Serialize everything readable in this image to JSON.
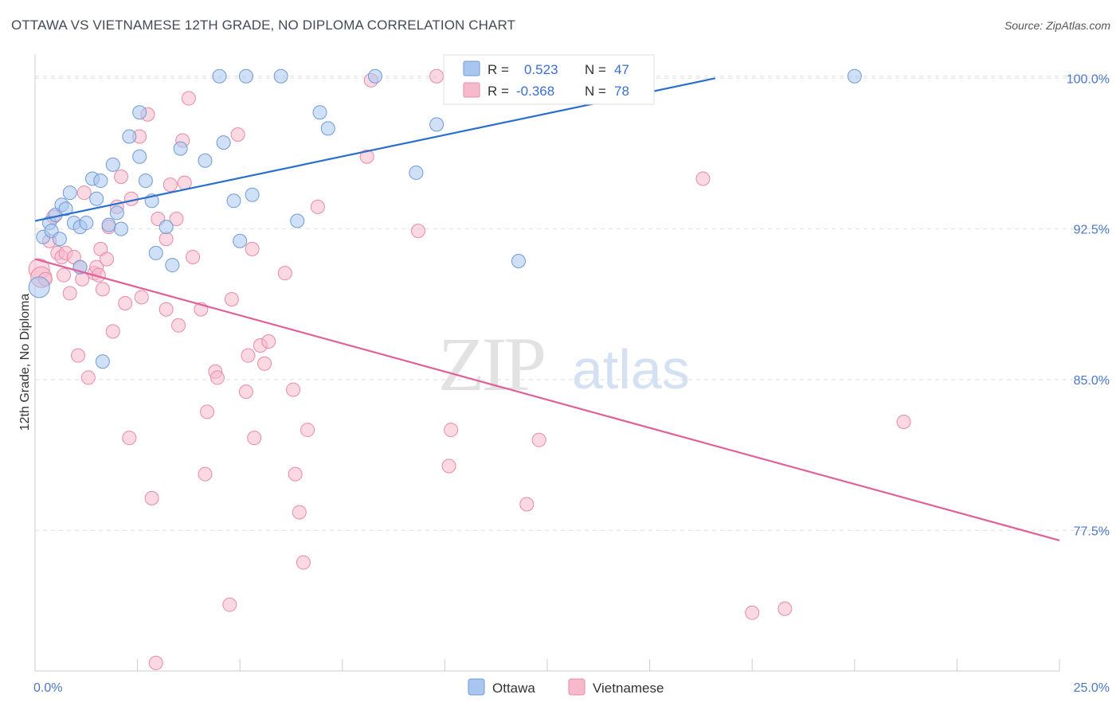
{
  "title": "OTTAWA VS VIETNAMESE 12TH GRADE, NO DIPLOMA CORRELATION CHART",
  "source": "Source: ZipAtlas.com",
  "watermark": {
    "zip": "ZIP",
    "atlas": "atlas"
  },
  "colors": {
    "ottawa_fill": "#a9c6f0",
    "ottawa_stroke": "#6f9ad8",
    "ottawa_line": "#2a6fcc",
    "viet_fill": "#f7b9cc",
    "viet_stroke": "#e88aa6",
    "viet_line": "#e0609a",
    "axis_text": "#4a78c4"
  },
  "legend_top": {
    "rows": [
      {
        "r_label": "R =",
        "r_value": "0.523",
        "n_label": "N =",
        "n_value": "47"
      },
      {
        "r_label": "R =",
        "r_value": "-0.368",
        "n_label": "N =",
        "n_value": "78"
      }
    ]
  },
  "legend_bottom": {
    "ottawa": "Ottawa",
    "vietnamese": "Vietnamese"
  },
  "chart_data": {
    "type": "scatter",
    "title": "OTTAWA VS VIETNAMESE 12TH GRADE, NO DIPLOMA CORRELATION CHART",
    "xlabel": "",
    "ylabel": "12th Grade, No Diploma",
    "xlim": [
      0,
      25
    ],
    "ylim": [
      70.5,
      101.2
    ],
    "x_tick_labels": [
      "0.0%",
      "25.0%"
    ],
    "y_ticks": [
      77.5,
      85.0,
      92.5,
      100.0
    ],
    "y_tick_labels": [
      "77.5%",
      "85.0%",
      "92.5%",
      "100.0%"
    ],
    "grid": true,
    "series": [
      {
        "name": "Ottawa",
        "trend": {
          "x0": 0,
          "y0": 92.9,
          "x1": 16.6,
          "y1": 100.0
        },
        "points": [
          [
            0.1,
            89.6
          ],
          [
            0.2,
            92.1
          ],
          [
            0.35,
            92.8
          ],
          [
            0.4,
            92.4
          ],
          [
            0.5,
            93.2
          ],
          [
            0.6,
            92.0
          ],
          [
            0.65,
            93.7
          ],
          [
            0.75,
            93.5
          ],
          [
            0.85,
            94.3
          ],
          [
            0.95,
            92.8
          ],
          [
            1.1,
            92.6
          ],
          [
            1.1,
            90.6
          ],
          [
            1.25,
            92.8
          ],
          [
            1.4,
            95.0
          ],
          [
            1.5,
            94.0
          ],
          [
            1.6,
            94.9
          ],
          [
            1.65,
            85.9
          ],
          [
            1.8,
            92.7
          ],
          [
            1.9,
            95.7
          ],
          [
            2.0,
            93.3
          ],
          [
            2.1,
            92.5
          ],
          [
            2.3,
            97.1
          ],
          [
            2.55,
            96.1
          ],
          [
            2.55,
            98.3
          ],
          [
            2.7,
            94.9
          ],
          [
            2.85,
            93.9
          ],
          [
            2.95,
            91.3
          ],
          [
            3.2,
            92.6
          ],
          [
            3.35,
            90.7
          ],
          [
            3.55,
            96.5
          ],
          [
            4.15,
            95.9
          ],
          [
            4.5,
            100.1
          ],
          [
            4.6,
            96.8
          ],
          [
            4.85,
            93.9
          ],
          [
            5.0,
            91.9
          ],
          [
            5.15,
            100.1
          ],
          [
            5.3,
            94.2
          ],
          [
            6.0,
            100.1
          ],
          [
            6.4,
            92.9
          ],
          [
            6.95,
            98.3
          ],
          [
            7.15,
            97.5
          ],
          [
            8.3,
            100.1
          ],
          [
            9.3,
            95.3
          ],
          [
            9.8,
            97.7
          ],
          [
            10.45,
            100.1
          ],
          [
            11.8,
            90.9
          ],
          [
            20.0,
            100.1
          ]
        ]
      },
      {
        "name": "Vietnamese",
        "trend": {
          "x0": 0,
          "y0": 91.0,
          "x1": 25.0,
          "y1": 77.0
        },
        "points": [
          [
            0.1,
            90.5
          ],
          [
            0.15,
            90.1
          ],
          [
            0.25,
            90.0
          ],
          [
            0.35,
            91.9
          ],
          [
            0.45,
            93.1
          ],
          [
            0.55,
            91.3
          ],
          [
            0.65,
            91.1
          ],
          [
            0.7,
            90.2
          ],
          [
            0.75,
            91.3
          ],
          [
            0.85,
            89.3
          ],
          [
            0.95,
            91.1
          ],
          [
            1.05,
            86.2
          ],
          [
            1.1,
            90.6
          ],
          [
            1.15,
            90.0
          ],
          [
            1.2,
            94.3
          ],
          [
            1.3,
            85.1
          ],
          [
            1.45,
            90.3
          ],
          [
            1.5,
            90.6
          ],
          [
            1.55,
            90.2
          ],
          [
            1.6,
            91.5
          ],
          [
            1.65,
            89.5
          ],
          [
            1.75,
            91.0
          ],
          [
            1.8,
            92.6
          ],
          [
            1.9,
            87.4
          ],
          [
            2.0,
            93.6
          ],
          [
            2.1,
            95.1
          ],
          [
            2.2,
            88.8
          ],
          [
            2.35,
            94.0
          ],
          [
            2.3,
            82.1
          ],
          [
            2.55,
            97.1
          ],
          [
            2.6,
            89.1
          ],
          [
            2.75,
            98.2
          ],
          [
            2.85,
            79.1
          ],
          [
            2.95,
            70.9
          ],
          [
            3.0,
            93.0
          ],
          [
            3.2,
            92.0
          ],
          [
            3.2,
            88.5
          ],
          [
            3.3,
            94.7
          ],
          [
            3.45,
            93.0
          ],
          [
            3.5,
            87.7
          ],
          [
            3.6,
            96.9
          ],
          [
            3.65,
            94.8
          ],
          [
            3.75,
            99.0
          ],
          [
            3.85,
            91.1
          ],
          [
            4.05,
            88.5
          ],
          [
            4.15,
            80.3
          ],
          [
            4.2,
            83.4
          ],
          [
            4.4,
            85.4
          ],
          [
            4.45,
            85.1
          ],
          [
            4.75,
            73.8
          ],
          [
            4.8,
            89.0
          ],
          [
            4.95,
            97.2
          ],
          [
            5.15,
            84.4
          ],
          [
            5.2,
            86.2
          ],
          [
            5.3,
            91.5
          ],
          [
            5.35,
            82.1
          ],
          [
            5.5,
            86.7
          ],
          [
            5.6,
            85.8
          ],
          [
            5.7,
            86.9
          ],
          [
            6.1,
            90.3
          ],
          [
            6.3,
            84.5
          ],
          [
            6.35,
            80.3
          ],
          [
            6.45,
            78.4
          ],
          [
            6.55,
            75.9
          ],
          [
            6.65,
            82.5
          ],
          [
            6.9,
            93.6
          ],
          [
            8.1,
            96.1
          ],
          [
            8.2,
            99.9
          ],
          [
            9.35,
            92.4
          ],
          [
            9.8,
            100.1
          ],
          [
            10.1,
            80.7
          ],
          [
            10.15,
            82.5
          ],
          [
            12.0,
            78.8
          ],
          [
            12.3,
            82.0
          ],
          [
            16.3,
            95.0
          ],
          [
            17.5,
            73.4
          ],
          [
            18.3,
            73.6
          ],
          [
            21.2,
            82.9
          ]
        ]
      }
    ]
  }
}
